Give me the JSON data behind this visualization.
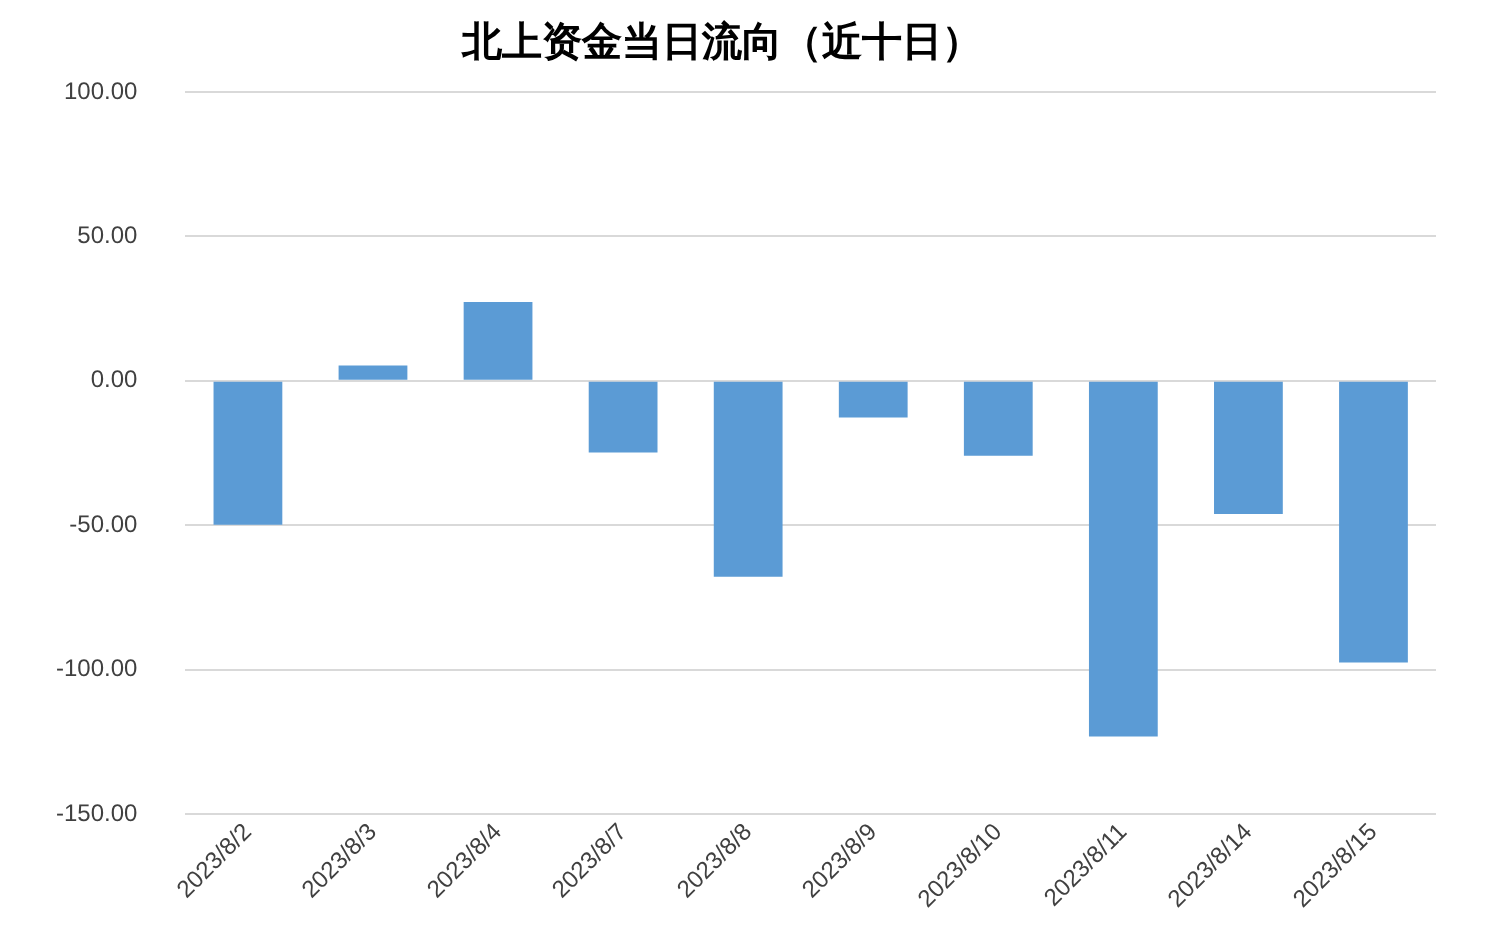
{
  "chart_data": {
    "type": "bar",
    "title": "北上资金当日流向（近十日）",
    "categories": [
      "2023/8/2",
      "2023/8/3",
      "2023/8/4",
      "2023/8/7",
      "2023/8/8",
      "2023/8/9",
      "2023/8/10",
      "2023/8/11",
      "2023/8/14",
      "2023/8/15"
    ],
    "values": [
      -49.8,
      5.3,
      27.3,
      -24.8,
      -67.8,
      -12.7,
      -25.9,
      -123.1,
      -46.1,
      -97.5
    ],
    "color": "#5b9bd5",
    "ylim": [
      -150,
      100
    ],
    "yticks": [
      {
        "value": 100,
        "label": "100.00"
      },
      {
        "value": 50,
        "label": "50.00"
      },
      {
        "value": 0,
        "label": "0.00"
      },
      {
        "value": -50,
        "label": "-50.00"
      },
      {
        "value": -100,
        "label": "-100.00"
      },
      {
        "value": -150,
        "label": "-150.00"
      }
    ],
    "grid": "y"
  }
}
